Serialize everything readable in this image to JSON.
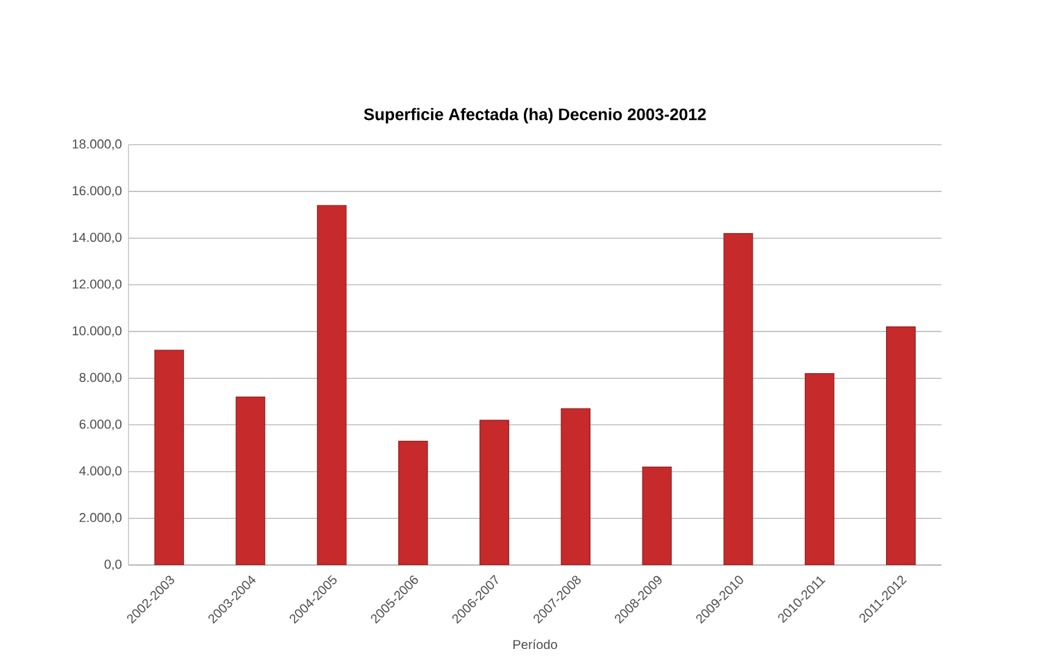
{
  "chart_data": {
    "type": "bar",
    "title": "Superficie Afectada (ha)  Decenio 2003-2012",
    "xlabel": "Período",
    "categories": [
      "2002-2003",
      "2003-2004",
      "2004-2005",
      "2005-2006",
      "2006-2007",
      "2007-2008",
      "2008-2009",
      "2009-2010",
      "2010-2011",
      "2011-2012"
    ],
    "values": [
      9200,
      7200,
      15400,
      5300,
      6200,
      6700,
      4200,
      14200,
      8200,
      10200
    ],
    "color": "#c62a2a",
    "ylim": [
      0,
      18000
    ],
    "yticks": [
      {
        "value": 0,
        "label": "0,0"
      },
      {
        "value": 2000,
        "label": "2.000,0"
      },
      {
        "value": 4000,
        "label": "4.000,0"
      },
      {
        "value": 6000,
        "label": "6.000,0"
      },
      {
        "value": 8000,
        "label": "8.000,0"
      },
      {
        "value": 10000,
        "label": "10.000,0"
      },
      {
        "value": 12000,
        "label": "12.000,0"
      },
      {
        "value": 14000,
        "label": "14.000,0"
      },
      {
        "value": 16000,
        "label": "16.000,0"
      },
      {
        "value": 18000,
        "label": "18.000,0"
      }
    ],
    "grid": "y"
  }
}
